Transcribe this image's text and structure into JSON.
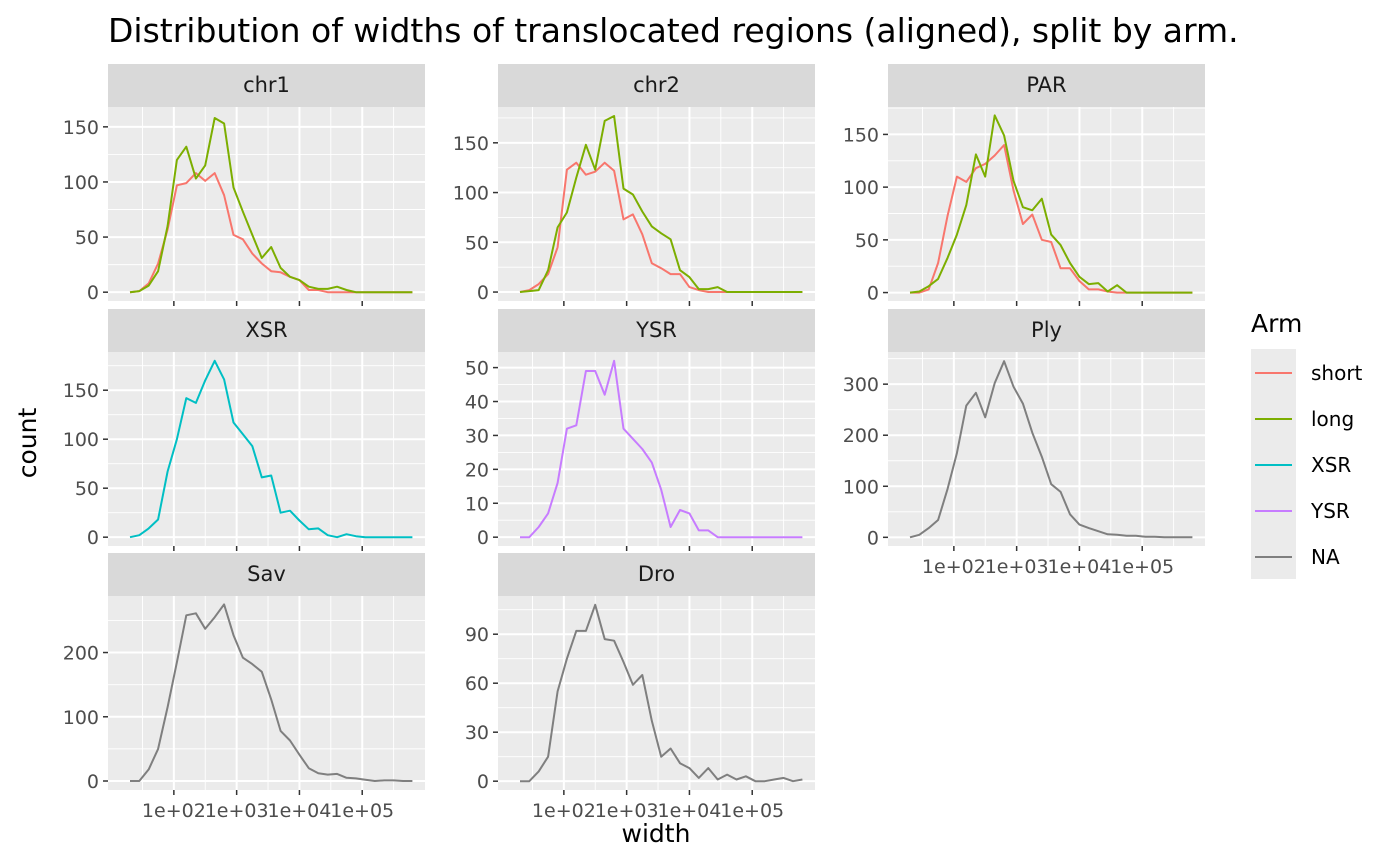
{
  "chart_data": {
    "type": "line",
    "title": "Distribution of widths of translocated regions (aligned), split by arm.",
    "xlabel": "width",
    "ylabel": "count",
    "x_scale": "log10",
    "x_ticks": [
      100,
      1000,
      10000,
      100000
    ],
    "x_tick_labels": [
      "1e+02",
      "1e+03",
      "1e+04",
      "1e+05"
    ],
    "x": [
      20,
      28.2,
      39.8,
      56.2,
      79.4,
      112,
      158,
      224,
      316,
      447,
      631,
      891,
      1259,
      1778,
      2512,
      3548,
      5012,
      7079,
      10000,
      14125,
      19953,
      28184,
      39811,
      56234,
      79433,
      112202,
      158489,
      223872,
      316228,
      446684,
      630957
    ],
    "grid": true,
    "legend": {
      "title": "Arm",
      "position": "right",
      "entries": [
        {
          "name": "short",
          "color": "#F8766D"
        },
        {
          "name": "long",
          "color": "#7CAE00"
        },
        {
          "name": "XSR",
          "color": "#00BFC4"
        },
        {
          "name": "YSR",
          "color": "#C77CFF"
        },
        {
          "name": "NA",
          "color": "#7F7F7F"
        }
      ]
    },
    "panels": [
      {
        "label": "chr1",
        "ylim": [
          -8,
          168
        ],
        "yticks": [
          0,
          50,
          100,
          150
        ],
        "series": [
          {
            "name": "short",
            "color": "#F8766D",
            "values": [
              0,
              1,
              8,
              26,
              57,
              97,
              99,
              108,
              101,
              108,
              88,
              52,
              48,
              35,
              26,
              19,
              18,
              14,
              11,
              2,
              2,
              0,
              0,
              0,
              0,
              0,
              0,
              0,
              0,
              0,
              0
            ]
          },
          {
            "name": "long",
            "color": "#7CAE00",
            "values": [
              0,
              1,
              6,
              19,
              60,
              120,
              132,
              103,
              115,
              158,
              153,
              95,
              73,
              52,
              31,
              41,
              22,
              14,
              11,
              5,
              3,
              3,
              5,
              2,
              0,
              0,
              0,
              0,
              0,
              0,
              0
            ]
          }
        ]
      },
      {
        "label": "chr2",
        "ylim": [
          -9,
          186
        ],
        "yticks": [
          0,
          50,
          100,
          150
        ],
        "series": [
          {
            "name": "short",
            "color": "#F8766D",
            "values": [
              0,
              2,
              8,
              18,
              45,
              123,
              130,
              118,
              121,
              130,
              122,
              73,
              78,
              58,
              29,
              24,
              18,
              18,
              5,
              2,
              0,
              0,
              0,
              0,
              0,
              0,
              0,
              0,
              0,
              0,
              0
            ]
          },
          {
            "name": "long",
            "color": "#7CAE00",
            "values": [
              0,
              1,
              2,
              22,
              65,
              80,
              115,
              148,
              123,
              172,
              177,
              104,
              98,
              81,
              66,
              59,
              53,
              22,
              15,
              3,
              3,
              5,
              0,
              0,
              0,
              0,
              0,
              0,
              0,
              0,
              0
            ]
          }
        ]
      },
      {
        "label": "PAR",
        "ylim": [
          -8,
          176
        ],
        "yticks": [
          0,
          50,
          100,
          150
        ],
        "series": [
          {
            "name": "short",
            "color": "#F8766D",
            "values": [
              0,
              0,
              3,
              28,
              73,
              110,
              105,
              118,
              122,
              130,
              140,
              97,
              65,
              74,
              50,
              48,
              23,
              23,
              11,
              3,
              3,
              1,
              0,
              0,
              0,
              0,
              0,
              0,
              0,
              0,
              0
            ]
          },
          {
            "name": "long",
            "color": "#7CAE00",
            "values": [
              0,
              1,
              6,
              13,
              33,
              55,
              83,
              131,
              110,
              168,
              149,
              106,
              81,
              78,
              89,
              55,
              45,
              28,
              15,
              8,
              9,
              1,
              7,
              0,
              0,
              0,
              0,
              0,
              0,
              0,
              0
            ]
          }
        ]
      },
      {
        "label": "XSR",
        "ylim": [
          -9,
          189
        ],
        "yticks": [
          0,
          50,
          100,
          150
        ],
        "series": [
          {
            "name": "XSR",
            "color": "#00BFC4",
            "values": [
              0,
              2,
              9,
              18,
              67,
              100,
              142,
              137,
              160,
              180,
              161,
              117,
              105,
              93,
              61,
              63,
              25,
              27,
              17,
              8,
              9,
              2,
              0,
              3,
              1,
              0,
              0,
              0,
              0,
              0,
              0
            ]
          }
        ]
      },
      {
        "label": "YSR",
        "ylim": [
          -2.6,
          54.6
        ],
        "yticks": [
          0,
          10,
          20,
          30,
          40,
          50
        ],
        "series": [
          {
            "name": "YSR",
            "color": "#C77CFF",
            "values": [
              0,
              0,
              3,
              7,
              16,
              32,
              33,
              49,
              49,
              42,
              52,
              32,
              29,
              26,
              22,
              14,
              3,
              8,
              7,
              2,
              2,
              0,
              0,
              0,
              0,
              0,
              0,
              0,
              0,
              0,
              0
            ]
          }
        ]
      },
      {
        "label": "Ply",
        "ylim": [
          -17,
          363
        ],
        "yticks": [
          0,
          100,
          200,
          300
        ],
        "series": [
          {
            "name": "NA",
            "color": "#7F7F7F",
            "values": [
              0,
              5,
              18,
              34,
              95,
              165,
              258,
              283,
              235,
              302,
              345,
              295,
              262,
              205,
              158,
              104,
              89,
              45,
              25,
              18,
              12,
              6,
              5,
              3,
              3,
              1,
              1,
              0,
              0,
              0,
              0
            ]
          }
        ]
      },
      {
        "label": "Sav",
        "ylim": [
          -14,
          288
        ],
        "yticks": [
          0,
          100,
          200
        ],
        "series": [
          {
            "name": "NA",
            "color": "#7F7F7F",
            "values": [
              0,
              0,
              18,
              50,
              115,
              185,
              258,
              261,
              237,
              255,
              275,
              227,
              192,
              182,
              170,
              127,
              78,
              63,
              41,
              20,
              12,
              10,
              11,
              5,
              4,
              2,
              0,
              1,
              1,
              0,
              0
            ]
          }
        ]
      },
      {
        "label": "Dro",
        "ylim": [
          -5.4,
          113.4
        ],
        "yticks": [
          0,
          30,
          60,
          90
        ],
        "series": [
          {
            "name": "NA",
            "color": "#7F7F7F",
            "values": [
              0,
              0,
              6,
              15,
              55,
              75,
              92,
              92,
              108,
              87,
              86,
              73,
              59,
              65,
              37,
              15,
              20,
              11,
              8,
              2,
              8,
              1,
              4,
              1,
              3,
              0,
              0,
              1,
              2,
              0,
              1
            ]
          }
        ]
      }
    ]
  }
}
